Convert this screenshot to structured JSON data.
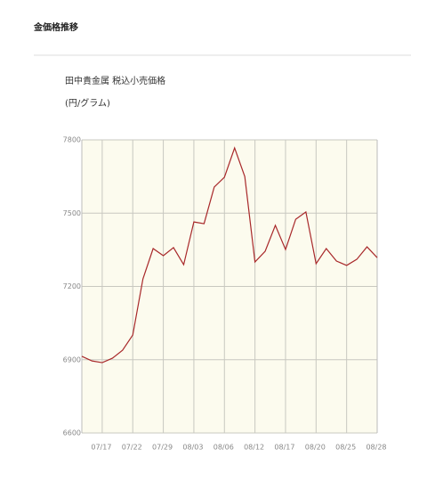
{
  "header": {
    "title": "金価格推移"
  },
  "chart_data": {
    "type": "line",
    "title": "田中貴金属 税込小売価格",
    "subtitle": "(円/グラム)",
    "categories": [
      null,
      null,
      "07/17",
      null,
      null,
      "07/22",
      null,
      null,
      "07/29",
      null,
      null,
      "08/03",
      null,
      null,
      "08/06",
      null,
      null,
      "08/12",
      null,
      null,
      "08/17",
      null,
      null,
      "08/20",
      null,
      null,
      "08/25",
      null,
      null,
      "08/28"
    ],
    "series": [
      {
        "color": "#a8282a",
        "values": [
          6914,
          6895,
          6888,
          6906,
          6939,
          7001,
          7231,
          7355,
          7326,
          7359,
          7289,
          7464,
          7457,
          7607,
          7647,
          7767,
          7650,
          7300,
          7344,
          7450,
          7351,
          7475,
          7505,
          7293,
          7355,
          7304,
          7286,
          7311,
          7362,
          7318
        ]
      }
    ],
    "ylim": [
      6600,
      7800
    ],
    "yticks": [
      6600,
      6900,
      7200,
      7500,
      7800
    ],
    "grid": true
  }
}
